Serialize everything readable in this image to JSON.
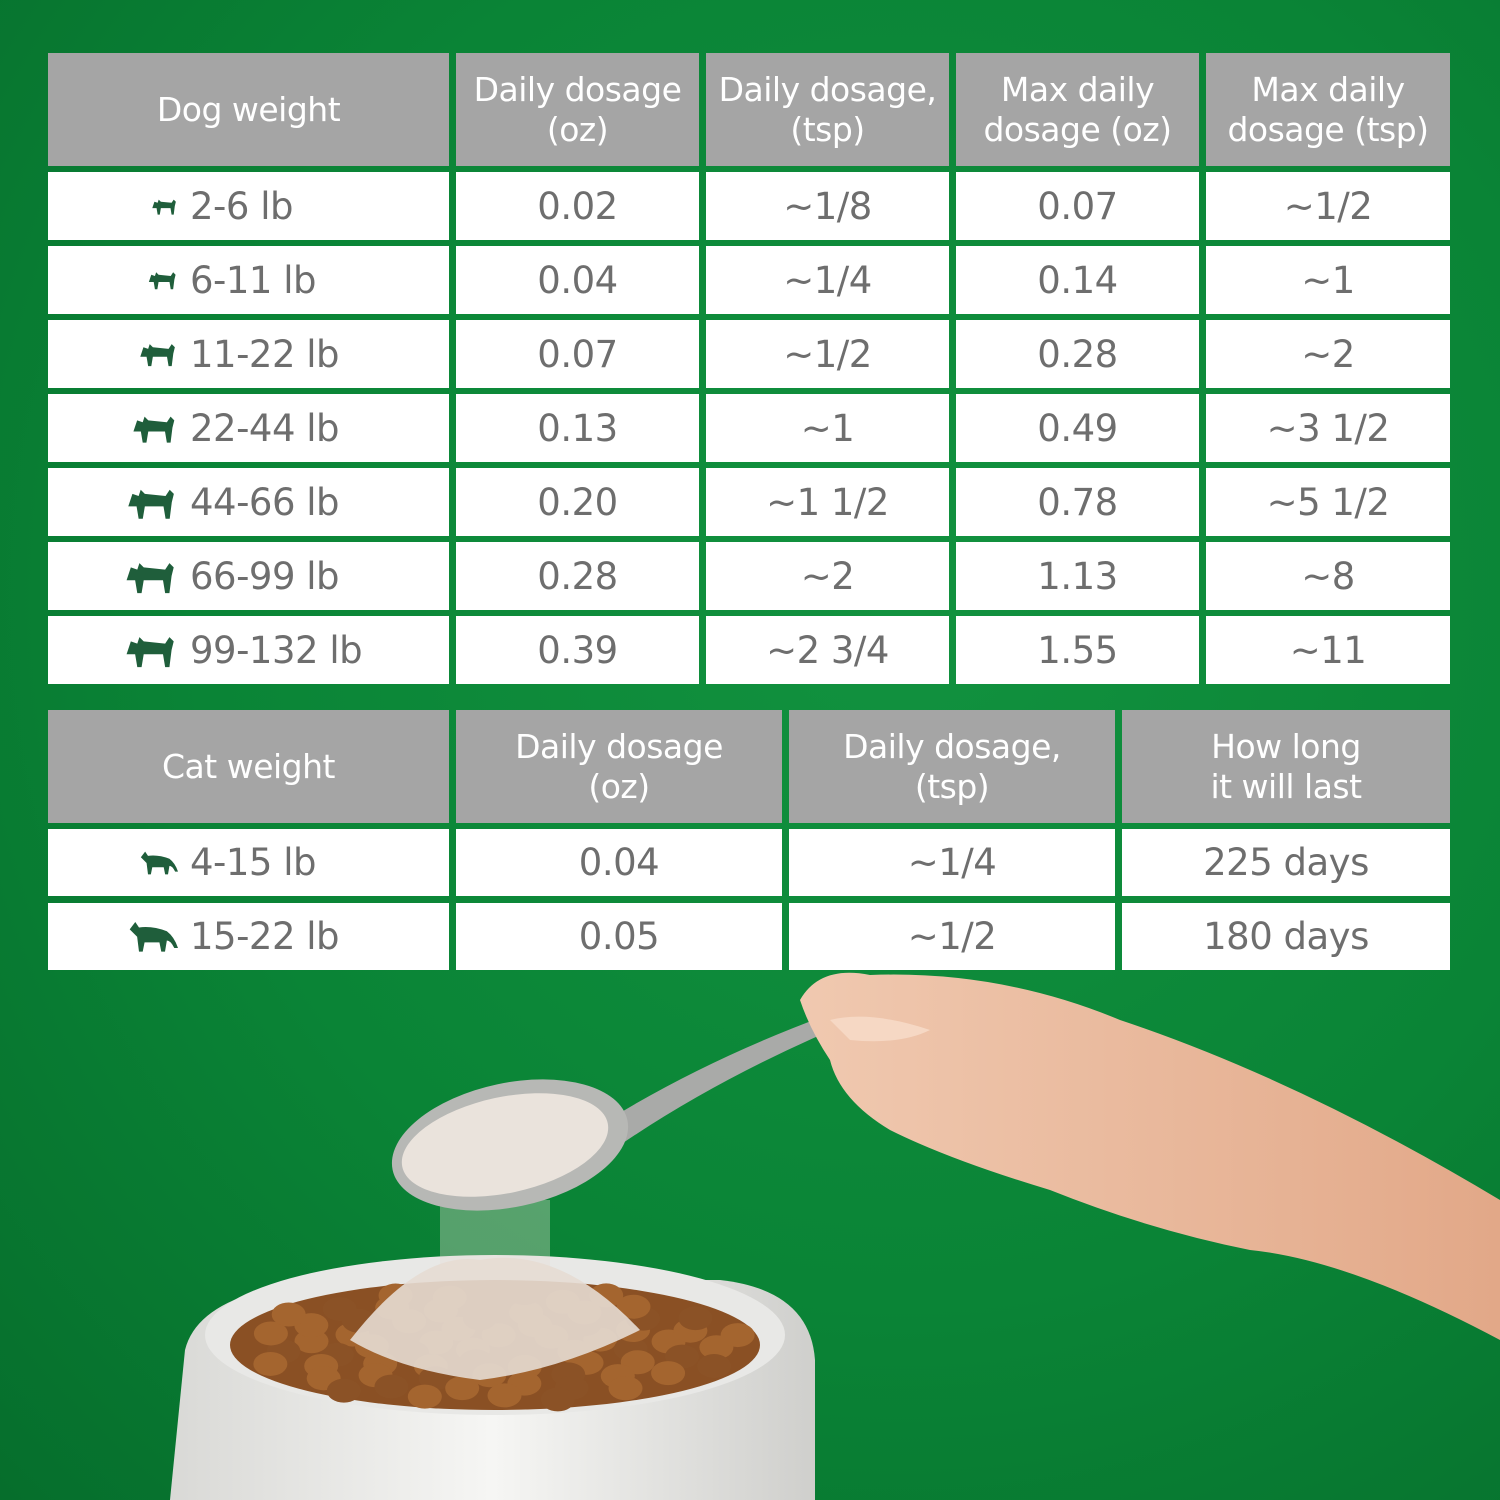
{
  "colors": {
    "background": "#0a8436",
    "header": "#a5a5a5",
    "text": "#6e6e6e",
    "icon": "#1f5e3b"
  },
  "dog_table": {
    "headers": [
      "Dog weight",
      "Daily dosage\n(oz)",
      "Daily dosage,\n(tsp)",
      "Max daily\ndosage (oz)",
      "Max daily\ndosage (tsp)"
    ],
    "rows": [
      {
        "icon": "chihuahua-icon",
        "weight": "2-6 lb",
        "daily_oz": "0.02",
        "daily_tsp": "~1/8",
        "max_oz": "0.07",
        "max_tsp": "~1/2"
      },
      {
        "icon": "pomeranian-icon",
        "weight": "6-11 lb",
        "daily_oz": "0.04",
        "daily_tsp": "~1/4",
        "max_oz": "0.14",
        "max_tsp": "~1"
      },
      {
        "icon": "terrier-icon",
        "weight": "11-22 lb",
        "daily_oz": "0.07",
        "daily_tsp": "~1/2",
        "max_oz": "0.28",
        "max_tsp": "~2"
      },
      {
        "icon": "spaniel-icon",
        "weight": "22-44 lb",
        "daily_oz": "0.13",
        "daily_tsp": "~1",
        "max_oz": "0.49",
        "max_tsp": "~3 1/2"
      },
      {
        "icon": "chow-icon",
        "weight": "44-66 lb",
        "daily_oz": "0.20",
        "daily_tsp": "~1 1/2",
        "max_oz": "0.78",
        "max_tsp": "~5 1/2"
      },
      {
        "icon": "doberman-icon",
        "weight": "66-99 lb",
        "daily_oz": "0.28",
        "daily_tsp": "~2",
        "max_oz": "1.13",
        "max_tsp": "~8"
      },
      {
        "icon": "akita-icon",
        "weight": "99-132 lb",
        "daily_oz": "0.39",
        "daily_tsp": "~2 3/4",
        "max_oz": "1.55",
        "max_tsp": "~11"
      }
    ]
  },
  "cat_table": {
    "headers": [
      "Cat weight",
      "Daily dosage\n(oz)",
      "Daily dosage,\n(tsp)",
      "How long\nit will last"
    ],
    "rows": [
      {
        "icon": "small-cat-icon",
        "weight": "4-15 lb",
        "daily_oz": "0.04",
        "daily_tsp": "~1/4",
        "duration": "225 days"
      },
      {
        "icon": "large-cat-icon",
        "weight": "15-22 lb",
        "daily_oz": "0.05",
        "daily_tsp": "~1/2",
        "duration": "180 days"
      }
    ]
  }
}
